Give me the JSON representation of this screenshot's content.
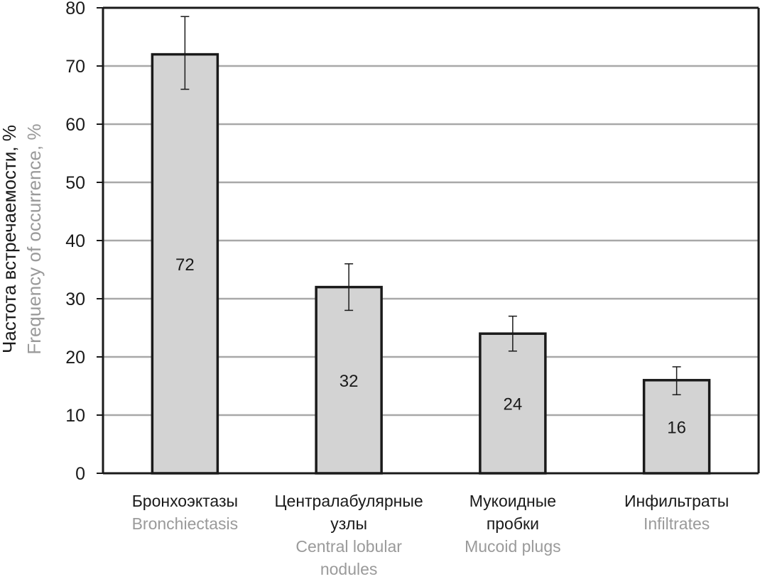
{
  "chart_data": {
    "type": "bar",
    "ylabel": "Частота встречаемости, %",
    "ylabel_en": "Frequency of occurrence, %",
    "ylim": [
      0,
      80
    ],
    "yticks": [
      "0",
      "10",
      "20",
      "30",
      "40",
      "50",
      "60",
      "70",
      "80"
    ],
    "grid": "horizontal",
    "categories": [
      {
        "ru": [
          "Бронхоэктазы"
        ],
        "en": [
          "Bronchiectasis"
        ]
      },
      {
        "ru": [
          "Централабулярные",
          "узлы"
        ],
        "en": [
          "Central lobular",
          "nodules"
        ]
      },
      {
        "ru": [
          "Мукоидные",
          "пробки"
        ],
        "en": [
          "Mucoid plugs"
        ]
      },
      {
        "ru": [
          "Инфильтраты"
        ],
        "en": [
          "Infiltrates"
        ]
      }
    ],
    "values": [
      72,
      32,
      24,
      16
    ],
    "value_labels": [
      "72",
      "32",
      "24",
      "16"
    ],
    "error_low": [
      66,
      28,
      21,
      13.5
    ],
    "error_high": [
      78.5,
      36,
      27,
      18.3
    ],
    "colors": {
      "bar_fill": "#d3d3d3",
      "bar_stroke": "#1a1a1a",
      "grid": "#a8a8a8",
      "axis": "#1a1a1a"
    }
  }
}
